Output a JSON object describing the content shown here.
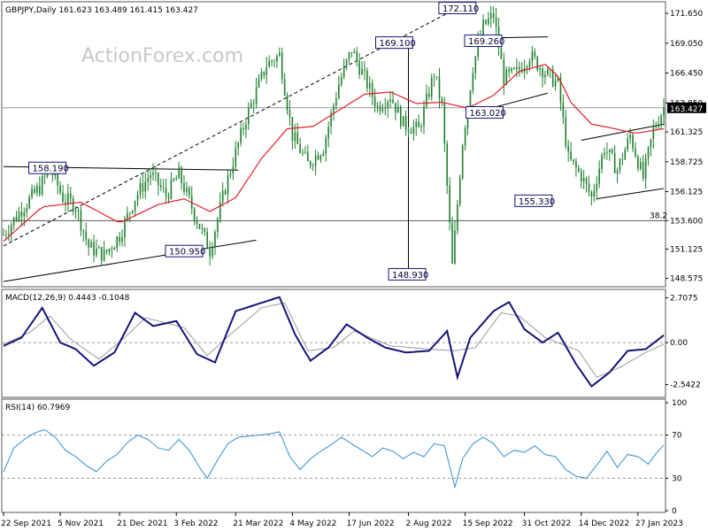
{
  "colors": {
    "candle": "#1e7f2e",
    "sma": "#e0202a",
    "macd_line": "#14147a",
    "macd_signal": "#9a9a9a",
    "rsi": "#2d8fd5",
    "annot_border": "#14147a",
    "trend": "#000000",
    "grid": "#9a9a9a"
  },
  "watermark": "ActionForex.com",
  "price_panel": {
    "title": "GBPJPY,Daily  161.623 163.489 161.415 163.427",
    "current_price_label": "163.427",
    "annotations": [
      {
        "label": "172.110",
        "price": 172.11,
        "day": 352
      },
      {
        "label": "169.100",
        "price": 169.1,
        "day": 303
      },
      {
        "label": "169.260",
        "price": 169.26,
        "day": 372
      },
      {
        "label": "163.020",
        "price": 163.02,
        "day": 373
      },
      {
        "label": "158.190",
        "price": 158.19,
        "day": 34
      },
      {
        "label": "150.950",
        "price": 150.95,
        "day": 140
      },
      {
        "label": "148.930",
        "price": 148.93,
        "day": 313
      },
      {
        "label": "155.330",
        "price": 155.33,
        "day": 411
      }
    ],
    "fib_label": "38.2",
    "fib_level": 153.6,
    "hline_level": 163.427,
    "ylim": [
      148.0,
      172.5
    ]
  },
  "macd_panel": {
    "title": "MACD(12,26,9) 0.4443 -0.1048",
    "ylim": [
      -3.1,
      3.0
    ]
  },
  "rsi_panel": {
    "title": "RSI(14) 60.7969",
    "ylim": [
      0,
      100
    ],
    "levels": [
      30,
      70
    ]
  },
  "chart_data": {
    "type": "candlestick",
    "title": "GBPJPY,Daily",
    "x_start": "22 Sep 2021",
    "x_end": "7 Feb 2023",
    "x_ticks": [
      {
        "label": "22 Sep 2021",
        "day": 0
      },
      {
        "label": "5 Nov 2021",
        "day": 44
      },
      {
        "label": "21 Dec 2021",
        "day": 90
      },
      {
        "label": "3 Feb 2022",
        "day": 134
      },
      {
        "label": "21 Mar 2022",
        "day": 180
      },
      {
        "label": "4 May 2022",
        "day": 224
      },
      {
        "label": "17 Jun 2022",
        "day": 268
      },
      {
        "label": "2 Aug 2022",
        "day": 314
      },
      {
        "label": "15 Sep 2022",
        "day": 358
      },
      {
        "label": "31 Oct 2022",
        "day": 404
      },
      {
        "label": "14 Dec 2022",
        "day": 448
      },
      {
        "label": "27 Jan 2023",
        "day": 492
      }
    ],
    "price_ticks": [
      "171.650",
      "169.050",
      "166.450",
      "163.850",
      "161.325",
      "158.725",
      "156.125",
      "153.600",
      "151.125",
      "148.575"
    ],
    "macd_ticks": [
      "2.7075",
      "0.00",
      "-2.5422"
    ],
    "rsi_ticks": [
      "100",
      "70",
      "30",
      "0"
    ],
    "ohlc_last": {
      "open": 161.623,
      "high": 163.489,
      "low": 161.415,
      "close": 163.427
    },
    "price_path": [
      {
        "day": 0,
        "price": 152.4
      },
      {
        "day": 14,
        "price": 154.6
      },
      {
        "day": 28,
        "price": 156.5
      },
      {
        "day": 36,
        "price": 158.19
      },
      {
        "day": 46,
        "price": 155.6
      },
      {
        "day": 56,
        "price": 154.9
      },
      {
        "day": 66,
        "price": 151.3
      },
      {
        "day": 78,
        "price": 150.6
      },
      {
        "day": 90,
        "price": 152.3
      },
      {
        "day": 102,
        "price": 155.6
      },
      {
        "day": 114,
        "price": 157.7
      },
      {
        "day": 126,
        "price": 155.8
      },
      {
        "day": 136,
        "price": 157.6
      },
      {
        "day": 148,
        "price": 154.2
      },
      {
        "day": 160,
        "price": 151.0
      },
      {
        "day": 172,
        "price": 156.5
      },
      {
        "day": 188,
        "price": 162.5
      },
      {
        "day": 204,
        "price": 167.2
      },
      {
        "day": 214,
        "price": 168.0
      },
      {
        "day": 224,
        "price": 161.0
      },
      {
        "day": 236,
        "price": 158.5
      },
      {
        "day": 248,
        "price": 160.0
      },
      {
        "day": 260,
        "price": 165.5
      },
      {
        "day": 270,
        "price": 168.5
      },
      {
        "day": 280,
        "price": 166.0
      },
      {
        "day": 290,
        "price": 163.5
      },
      {
        "day": 300,
        "price": 164.5
      },
      {
        "day": 310,
        "price": 162.0
      },
      {
        "day": 322,
        "price": 161.5
      },
      {
        "day": 334,
        "price": 166.5
      },
      {
        "day": 340,
        "price": 163.5
      },
      {
        "day": 348,
        "price": 149.6
      },
      {
        "day": 356,
        "price": 160.5
      },
      {
        "day": 364,
        "price": 167.0
      },
      {
        "day": 372,
        "price": 170.5
      },
      {
        "day": 380,
        "price": 171.5
      },
      {
        "day": 388,
        "price": 166.0
      },
      {
        "day": 398,
        "price": 166.5
      },
      {
        "day": 408,
        "price": 168.0
      },
      {
        "day": 420,
        "price": 166.5
      },
      {
        "day": 430,
        "price": 165.5
      },
      {
        "day": 438,
        "price": 159.0
      },
      {
        "day": 448,
        "price": 157.5
      },
      {
        "day": 456,
        "price": 155.6
      },
      {
        "day": 466,
        "price": 160.0
      },
      {
        "day": 476,
        "price": 158.0
      },
      {
        "day": 486,
        "price": 161.0
      },
      {
        "day": 496,
        "price": 157.3
      },
      {
        "day": 504,
        "price": 161.5
      },
      {
        "day": 512,
        "price": 163.427
      }
    ],
    "sma_path": [
      {
        "day": 0,
        "price": 151.8
      },
      {
        "day": 30,
        "price": 154.8
      },
      {
        "day": 60,
        "price": 155.2
      },
      {
        "day": 90,
        "price": 153.4
      },
      {
        "day": 120,
        "price": 155.0
      },
      {
        "day": 140,
        "price": 155.5
      },
      {
        "day": 160,
        "price": 154.4
      },
      {
        "day": 180,
        "price": 155.6
      },
      {
        "day": 200,
        "price": 159.0
      },
      {
        "day": 220,
        "price": 161.6
      },
      {
        "day": 240,
        "price": 161.8
      },
      {
        "day": 260,
        "price": 163.2
      },
      {
        "day": 280,
        "price": 164.6
      },
      {
        "day": 300,
        "price": 164.8
      },
      {
        "day": 320,
        "price": 163.8
      },
      {
        "day": 340,
        "price": 163.9
      },
      {
        "day": 360,
        "price": 163.4
      },
      {
        "day": 380,
        "price": 164.5
      },
      {
        "day": 400,
        "price": 166.6
      },
      {
        "day": 420,
        "price": 167.2
      },
      {
        "day": 430,
        "price": 166.2
      },
      {
        "day": 440,
        "price": 163.9
      },
      {
        "day": 456,
        "price": 162.0
      },
      {
        "day": 470,
        "price": 161.7
      },
      {
        "day": 490,
        "price": 161.2
      },
      {
        "day": 512,
        "price": 161.6
      }
    ],
    "macd_path": [
      {
        "day": 0,
        "value": -0.2
      },
      {
        "day": 14,
        "value": 0.3
      },
      {
        "day": 30,
        "value": 2.1
      },
      {
        "day": 44,
        "value": 0.0
      },
      {
        "day": 56,
        "value": -0.4
      },
      {
        "day": 70,
        "value": -1.4
      },
      {
        "day": 86,
        "value": -0.6
      },
      {
        "day": 102,
        "value": 1.8
      },
      {
        "day": 116,
        "value": 1.0
      },
      {
        "day": 134,
        "value": 1.3
      },
      {
        "day": 150,
        "value": -0.7
      },
      {
        "day": 164,
        "value": -1.2
      },
      {
        "day": 180,
        "value": 1.9
      },
      {
        "day": 196,
        "value": 2.3
      },
      {
        "day": 214,
        "value": 2.75
      },
      {
        "day": 226,
        "value": 0.5
      },
      {
        "day": 238,
        "value": -1.1
      },
      {
        "day": 252,
        "value": -0.3
      },
      {
        "day": 266,
        "value": 1.1
      },
      {
        "day": 282,
        "value": 0.3
      },
      {
        "day": 296,
        "value": -0.3
      },
      {
        "day": 312,
        "value": -0.6
      },
      {
        "day": 330,
        "value": -0.5
      },
      {
        "day": 344,
        "value": 0.7
      },
      {
        "day": 352,
        "value": -2.1
      },
      {
        "day": 362,
        "value": 0.3
      },
      {
        "day": 380,
        "value": 1.9
      },
      {
        "day": 392,
        "value": 2.45
      },
      {
        "day": 404,
        "value": 0.8
      },
      {
        "day": 418,
        "value": 0.0
      },
      {
        "day": 430,
        "value": 0.6
      },
      {
        "day": 444,
        "value": -1.3
      },
      {
        "day": 456,
        "value": -2.65
      },
      {
        "day": 470,
        "value": -1.8
      },
      {
        "day": 484,
        "value": -0.5
      },
      {
        "day": 498,
        "value": -0.4
      },
      {
        "day": 512,
        "value": 0.44
      }
    ],
    "signal_path": [
      {
        "day": 0,
        "value": -0.1
      },
      {
        "day": 20,
        "value": 0.6
      },
      {
        "day": 36,
        "value": 1.6
      },
      {
        "day": 52,
        "value": 0.2
      },
      {
        "day": 74,
        "value": -1.0
      },
      {
        "day": 94,
        "value": 0.3
      },
      {
        "day": 110,
        "value": 1.5
      },
      {
        "day": 140,
        "value": 0.9
      },
      {
        "day": 158,
        "value": -0.8
      },
      {
        "day": 176,
        "value": 0.5
      },
      {
        "day": 200,
        "value": 2.1
      },
      {
        "day": 218,
        "value": 2.4
      },
      {
        "day": 236,
        "value": -0.5
      },
      {
        "day": 256,
        "value": -0.3
      },
      {
        "day": 272,
        "value": 0.7
      },
      {
        "day": 300,
        "value": -0.2
      },
      {
        "day": 330,
        "value": -0.4
      },
      {
        "day": 350,
        "value": -0.5
      },
      {
        "day": 366,
        "value": -0.3
      },
      {
        "day": 386,
        "value": 1.8
      },
      {
        "day": 400,
        "value": 1.6
      },
      {
        "day": 420,
        "value": 0.3
      },
      {
        "day": 446,
        "value": -0.5
      },
      {
        "day": 460,
        "value": -2.1
      },
      {
        "day": 478,
        "value": -1.5
      },
      {
        "day": 498,
        "value": -0.6
      },
      {
        "day": 512,
        "value": -0.1
      }
    ],
    "rsi_path": [
      {
        "day": 0,
        "value": 36
      },
      {
        "day": 8,
        "value": 58
      },
      {
        "day": 16,
        "value": 66
      },
      {
        "day": 24,
        "value": 72
      },
      {
        "day": 32,
        "value": 75
      },
      {
        "day": 40,
        "value": 68
      },
      {
        "day": 48,
        "value": 56
      },
      {
        "day": 56,
        "value": 50
      },
      {
        "day": 64,
        "value": 42
      },
      {
        "day": 72,
        "value": 36
      },
      {
        "day": 80,
        "value": 46
      },
      {
        "day": 88,
        "value": 52
      },
      {
        "day": 96,
        "value": 63
      },
      {
        "day": 104,
        "value": 70
      },
      {
        "day": 112,
        "value": 66
      },
      {
        "day": 120,
        "value": 58
      },
      {
        "day": 128,
        "value": 56
      },
      {
        "day": 136,
        "value": 66
      },
      {
        "day": 144,
        "value": 56
      },
      {
        "day": 152,
        "value": 40
      },
      {
        "day": 158,
        "value": 30
      },
      {
        "day": 166,
        "value": 47
      },
      {
        "day": 174,
        "value": 62
      },
      {
        "day": 182,
        "value": 68
      },
      {
        "day": 190,
        "value": 69
      },
      {
        "day": 198,
        "value": 70
      },
      {
        "day": 206,
        "value": 71
      },
      {
        "day": 214,
        "value": 73
      },
      {
        "day": 222,
        "value": 50
      },
      {
        "day": 230,
        "value": 38
      },
      {
        "day": 238,
        "value": 48
      },
      {
        "day": 246,
        "value": 55
      },
      {
        "day": 254,
        "value": 61
      },
      {
        "day": 262,
        "value": 68
      },
      {
        "day": 270,
        "value": 62
      },
      {
        "day": 278,
        "value": 56
      },
      {
        "day": 286,
        "value": 50
      },
      {
        "day": 294,
        "value": 58
      },
      {
        "day": 302,
        "value": 55
      },
      {
        "day": 310,
        "value": 48
      },
      {
        "day": 318,
        "value": 54
      },
      {
        "day": 326,
        "value": 50
      },
      {
        "day": 334,
        "value": 62
      },
      {
        "day": 342,
        "value": 60
      },
      {
        "day": 350,
        "value": 22
      },
      {
        "day": 356,
        "value": 48
      },
      {
        "day": 364,
        "value": 62
      },
      {
        "day": 372,
        "value": 68
      },
      {
        "day": 380,
        "value": 62
      },
      {
        "day": 388,
        "value": 50
      },
      {
        "day": 396,
        "value": 56
      },
      {
        "day": 404,
        "value": 54
      },
      {
        "day": 412,
        "value": 60
      },
      {
        "day": 420,
        "value": 52
      },
      {
        "day": 428,
        "value": 50
      },
      {
        "day": 436,
        "value": 38
      },
      {
        "day": 444,
        "value": 32
      },
      {
        "day": 452,
        "value": 30
      },
      {
        "day": 460,
        "value": 42
      },
      {
        "day": 468,
        "value": 55
      },
      {
        "day": 476,
        "value": 40
      },
      {
        "day": 484,
        "value": 52
      },
      {
        "day": 492,
        "value": 50
      },
      {
        "day": 500,
        "value": 43
      },
      {
        "day": 506,
        "value": 53
      },
      {
        "day": 512,
        "value": 60.7969
      }
    ]
  }
}
